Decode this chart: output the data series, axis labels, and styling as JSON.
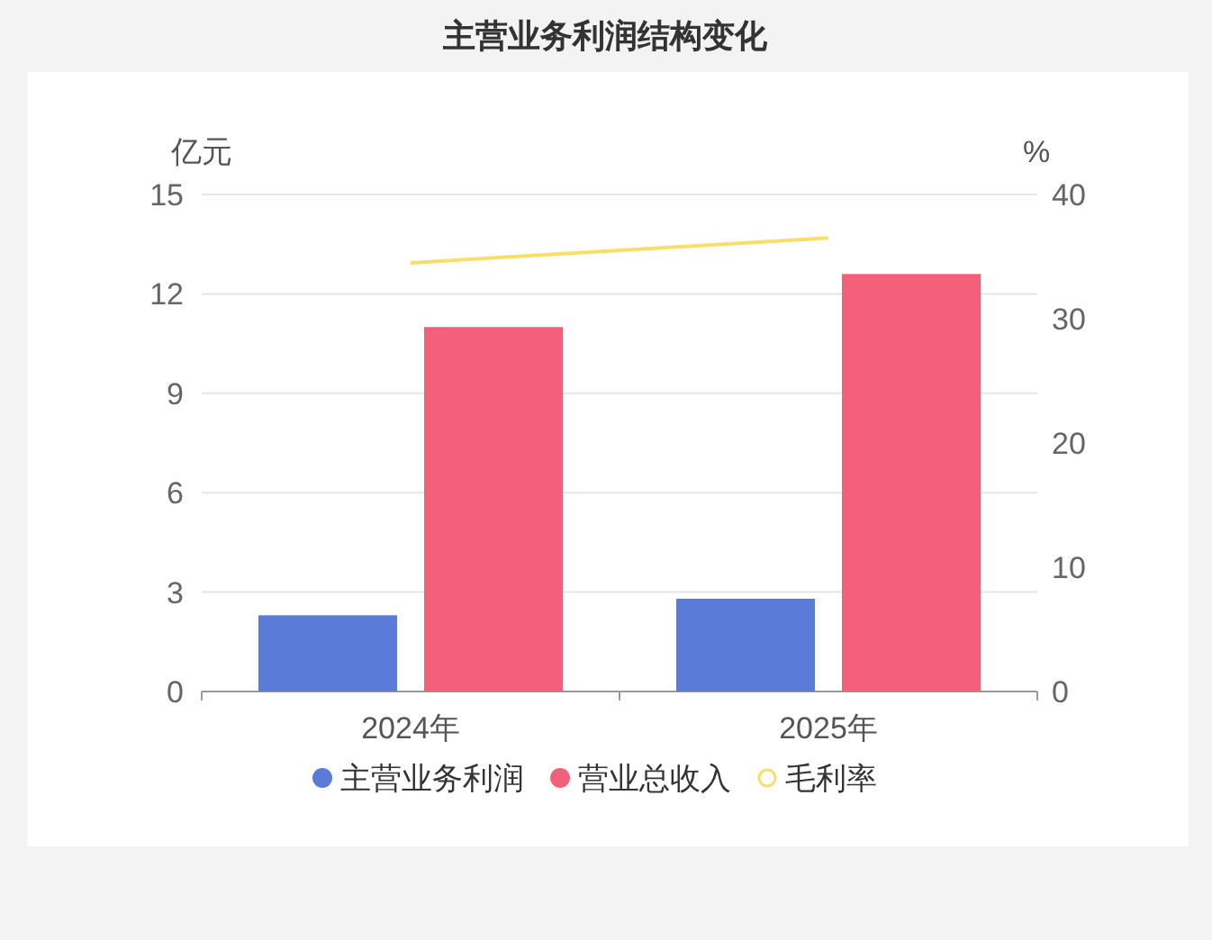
{
  "chart_data": {
    "type": "bar",
    "title": "主营业务利润结构变化",
    "categories": [
      "2024年",
      "2025年"
    ],
    "ylabel": "亿元",
    "y2label": "%",
    "ylim": [
      0,
      15
    ],
    "yticks": [
      0,
      3,
      6,
      9,
      12,
      15
    ],
    "y2lim": [
      0,
      40
    ],
    "y2ticks": [
      0,
      10,
      20,
      30,
      40
    ],
    "grid": "y",
    "legend": "bottom",
    "series": [
      {
        "name": "主营业务利润",
        "color": "#5b7bd8",
        "values": [
          2.3,
          2.8
        ]
      },
      {
        "name": "营业总收入",
        "color": "#f4607a",
        "values": [
          11.0,
          12.6
        ]
      },
      {
        "name": "毛利率",
        "type": "line",
        "axis": "y2",
        "color": "#f7df6a",
        "values": [
          34.5,
          36.5
        ]
      }
    ]
  }
}
